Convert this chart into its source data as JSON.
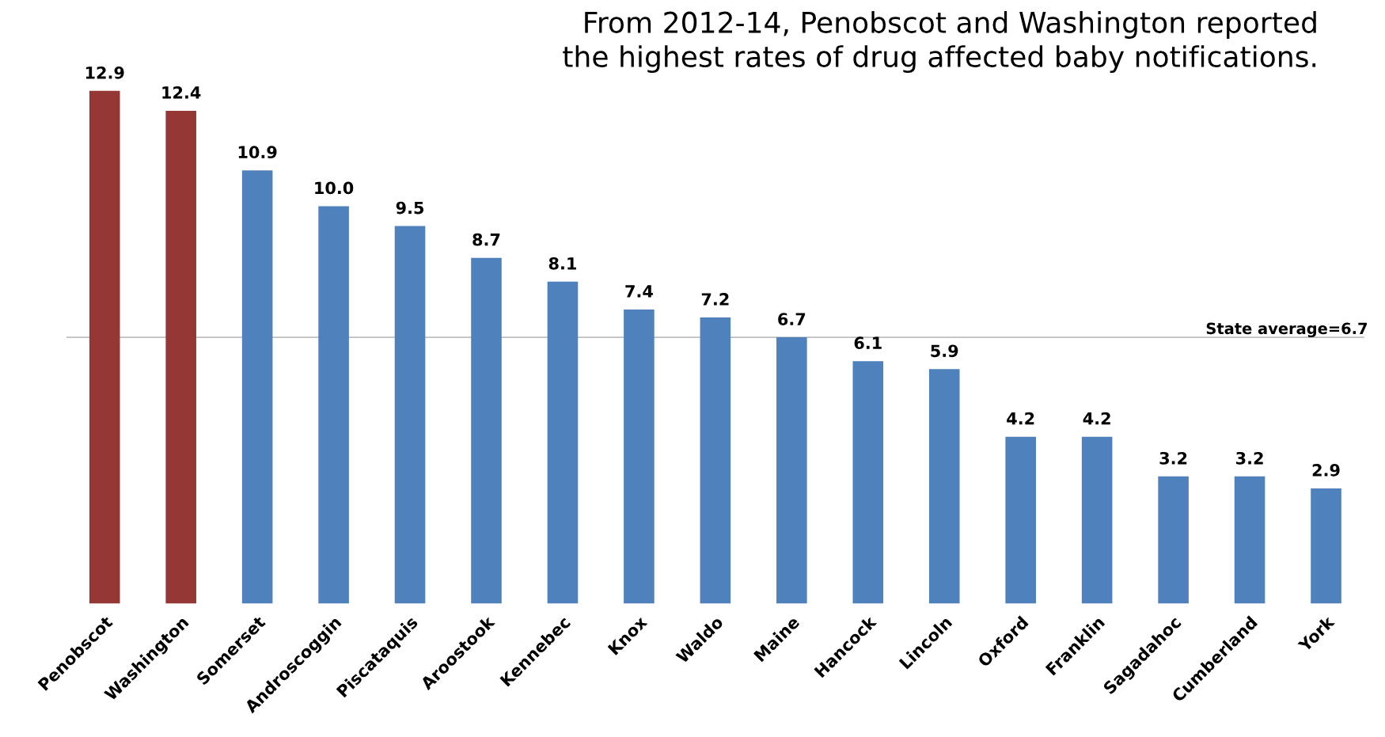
{
  "chart_data": {
    "type": "bar",
    "title": "From 2012-14, Penobscot and Washington reported\nthe highest rates of drug affected baby notifications.",
    "categories": [
      "Penobscot",
      "Washington",
      "Somerset",
      "Androscoggin",
      "Piscataquis",
      "Aroostook",
      "Kennebec",
      "Knox",
      "Waldo",
      "Maine",
      "Hancock",
      "Lincoln",
      "Oxford",
      "Franklin",
      "Sagadahoc",
      "Cumberland",
      "York"
    ],
    "values": [
      12.9,
      12.4,
      10.9,
      10.0,
      9.5,
      8.7,
      8.1,
      7.4,
      7.2,
      6.7,
      6.1,
      5.9,
      4.2,
      4.2,
      3.2,
      3.2,
      2.9
    ],
    "value_labels": [
      "12.9",
      "12.4",
      "10.9",
      "10.0",
      "9.5",
      "8.7",
      "8.1",
      "7.4",
      "7.2",
      "6.7",
      "6.1",
      "5.9",
      "4.2",
      "4.2",
      "3.2",
      "3.2",
      "2.9"
    ],
    "colors": [
      "#953735",
      "#953735",
      "#4f81bd",
      "#4f81bd",
      "#4f81bd",
      "#4f81bd",
      "#4f81bd",
      "#4f81bd",
      "#4f81bd",
      "#4f81bd",
      "#4f81bd",
      "#4f81bd",
      "#4f81bd",
      "#4f81bd",
      "#4f81bd",
      "#4f81bd",
      "#4f81bd"
    ],
    "ref_lines": [
      {
        "axis": "y",
        "value": 6.7,
        "label": "State average=6.7",
        "color": "#bfbfbf"
      }
    ],
    "grid": false
  }
}
